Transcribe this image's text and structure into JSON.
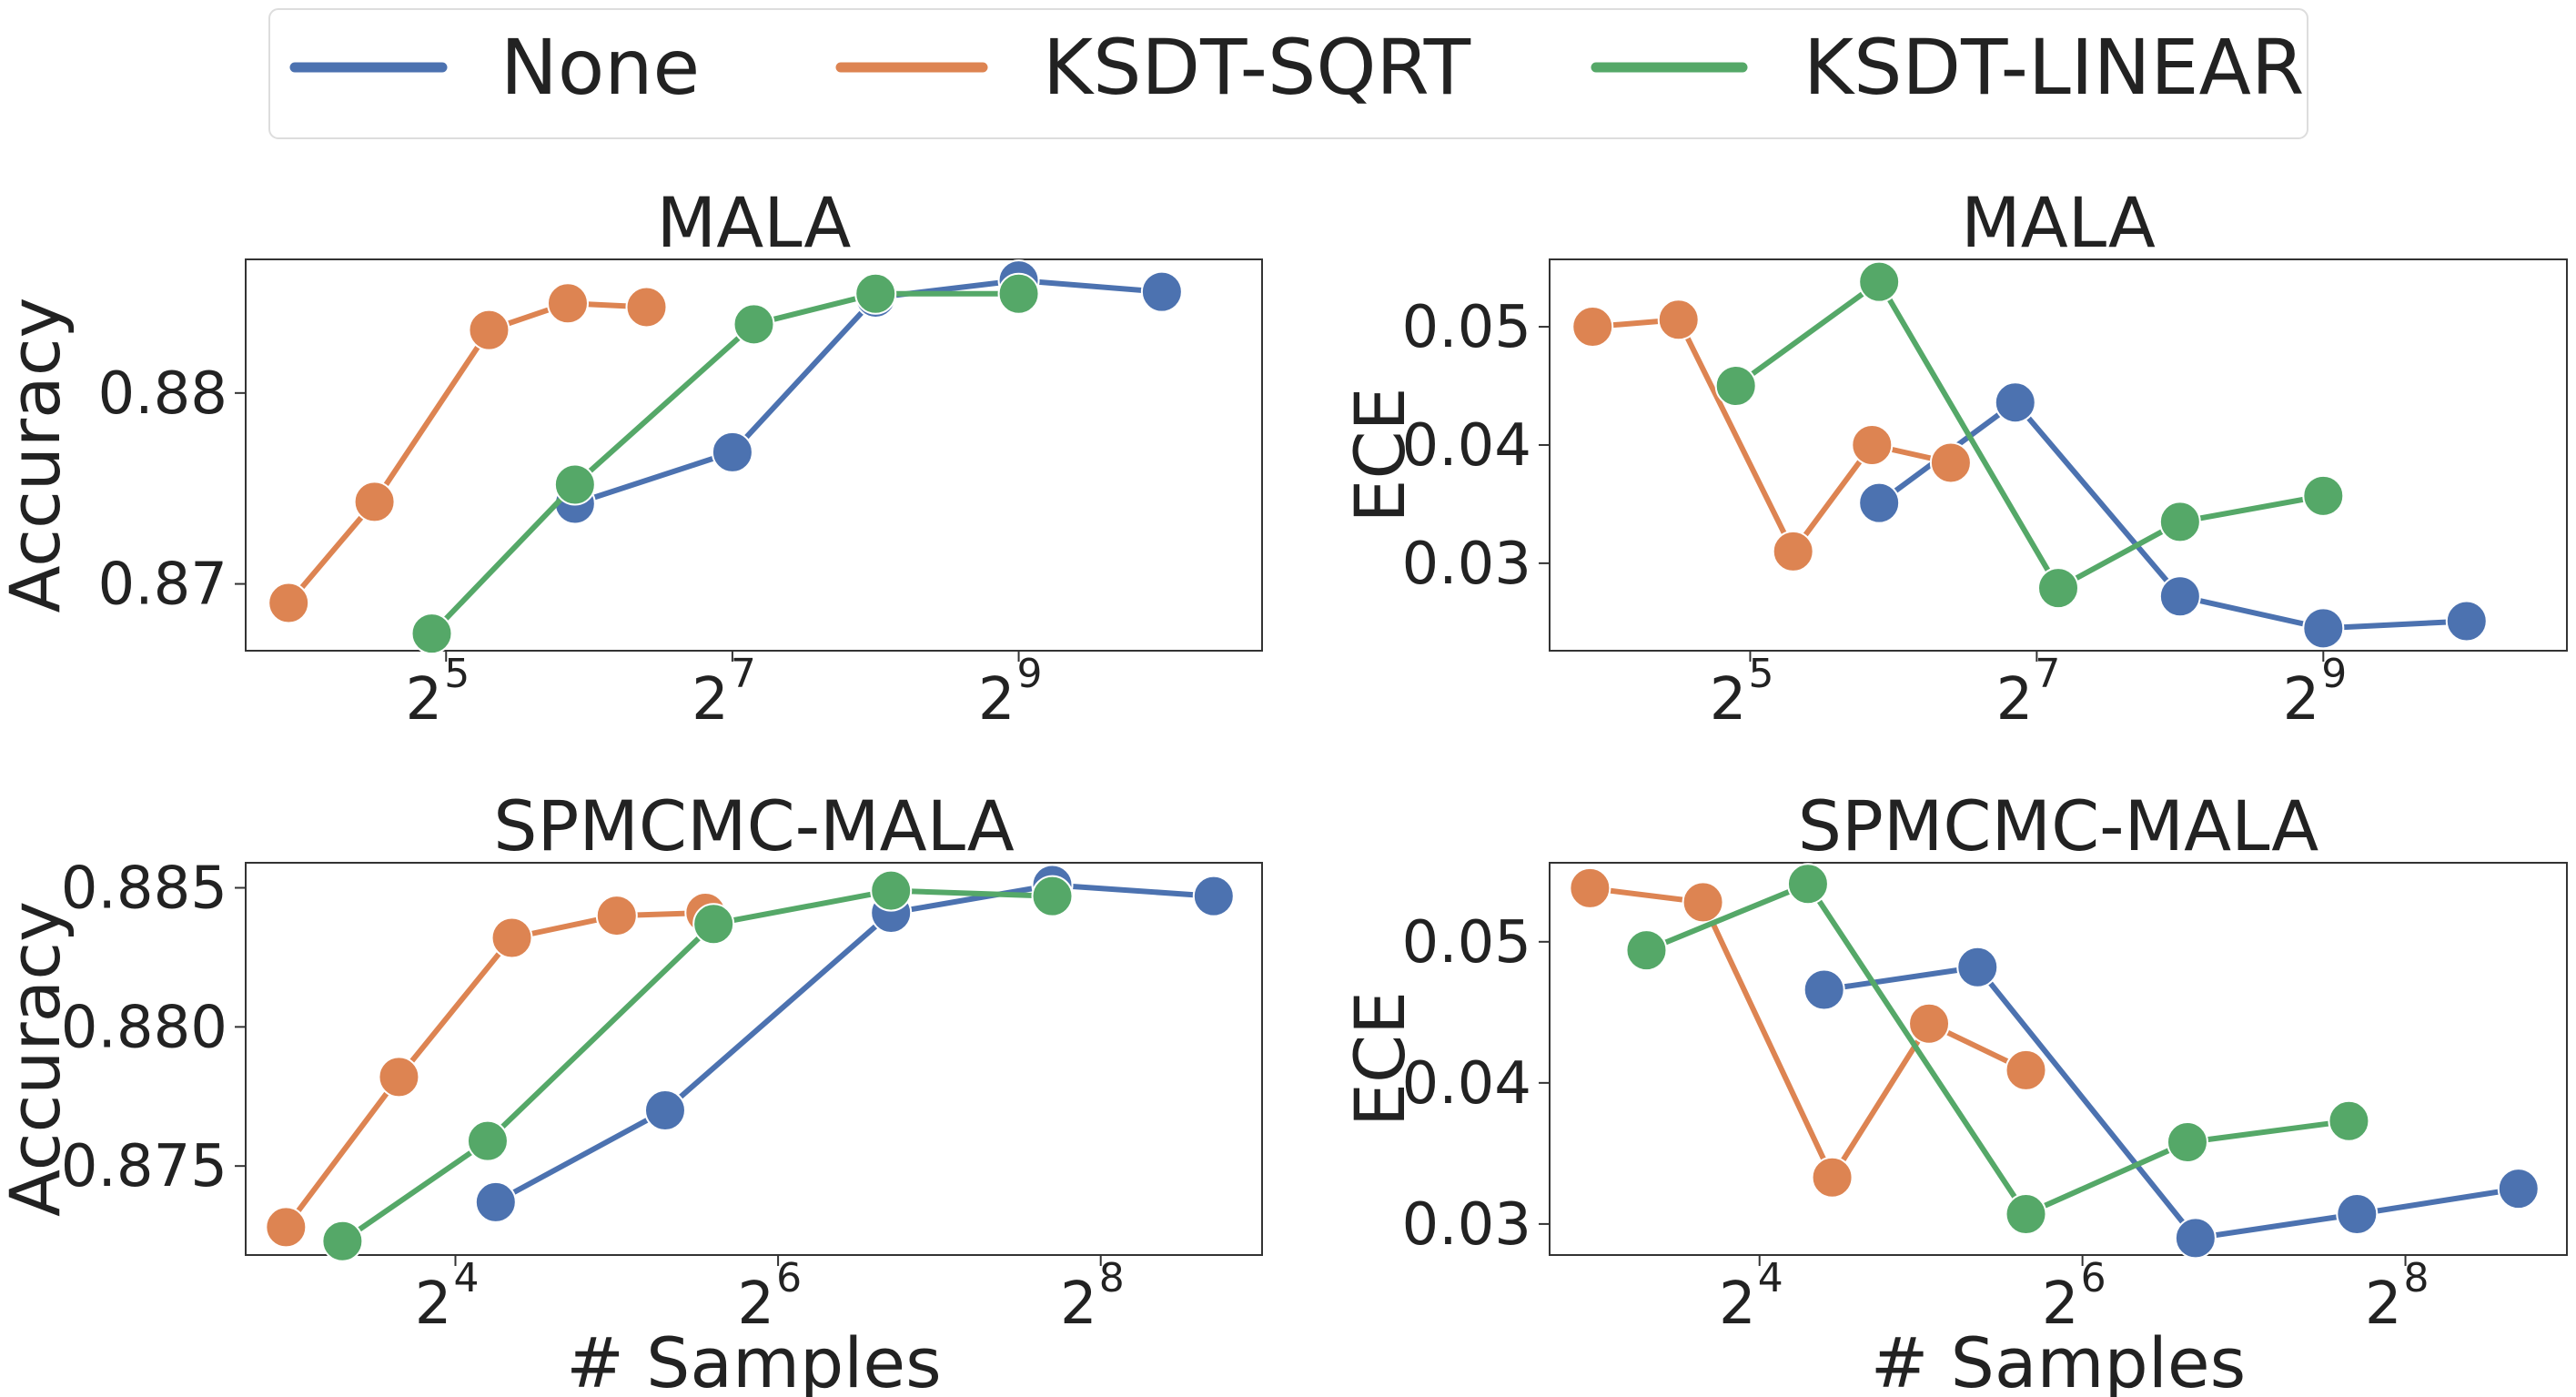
{
  "legend": {
    "entries": [
      {
        "label": "None",
        "color": "#4c72b0"
      },
      {
        "label": "KSDT-SQRT",
        "color": "#dd8452"
      },
      {
        "label": "KSDT-LINEAR",
        "color": "#55a868"
      }
    ]
  },
  "chart_data": [
    {
      "type": "line",
      "title": "MALA",
      "xlabel": "",
      "ylabel": "Accuracy",
      "xscale": "log2",
      "xlim_log2": [
        3.6,
        10.7
      ],
      "ylim": [
        0.8665,
        0.887
      ],
      "xticks": [
        {
          "base": "2",
          "exp": "5",
          "log2": 5
        },
        {
          "base": "2",
          "exp": "7",
          "log2": 7
        },
        {
          "base": "2",
          "exp": "9",
          "log2": 9
        }
      ],
      "yticks": [
        {
          "label": "0.87",
          "value": 0.87
        },
        {
          "label": "0.88",
          "value": 0.88
        }
      ],
      "series": [
        {
          "name": "None",
          "x_log2": [
            5.9,
            7.0,
            8.0,
            9.0,
            10.0
          ],
          "values": [
            0.8742,
            0.8769,
            0.885,
            0.8859,
            0.8853
          ]
        },
        {
          "name": "KSDT-SQRT",
          "x_log2": [
            3.9,
            4.5,
            5.3,
            5.85,
            6.4
          ],
          "values": [
            0.869,
            0.8743,
            0.8833,
            0.8847,
            0.8845
          ]
        },
        {
          "name": "KSDT-LINEAR",
          "x_log2": [
            4.9,
            5.9,
            7.15,
            8.0,
            9.0
          ],
          "values": [
            0.8674,
            0.8752,
            0.8836,
            0.8852,
            0.8852
          ]
        }
      ]
    },
    {
      "type": "line",
      "title": "MALA",
      "xlabel": "",
      "ylabel": "ECE",
      "xscale": "log2",
      "xlim_log2": [
        3.6,
        10.7
      ],
      "ylim": [
        0.0226,
        0.0557
      ],
      "xticks": [
        {
          "base": "2",
          "exp": "5",
          "log2": 5
        },
        {
          "base": "2",
          "exp": "7",
          "log2": 7
        },
        {
          "base": "2",
          "exp": "9",
          "log2": 9
        }
      ],
      "yticks": [
        {
          "label": "0.03",
          "value": 0.03
        },
        {
          "label": "0.04",
          "value": 0.04
        },
        {
          "label": "0.05",
          "value": 0.05
        }
      ],
      "series": [
        {
          "name": "None",
          "x_log2": [
            5.9,
            6.85,
            8.0,
            9.0,
            10.0
          ],
          "values": [
            0.0351,
            0.0436,
            0.0272,
            0.0245,
            0.0251
          ]
        },
        {
          "name": "KSDT-SQRT",
          "x_log2": [
            3.9,
            4.5,
            5.3,
            5.85,
            6.4
          ],
          "values": [
            0.05,
            0.0506,
            0.031,
            0.04,
            0.0385
          ]
        },
        {
          "name": "KSDT-LINEAR",
          "x_log2": [
            4.9,
            5.9,
            7.15,
            8.0,
            9.0
          ],
          "values": [
            0.045,
            0.0538,
            0.0279,
            0.0335,
            0.0357
          ]
        }
      ]
    },
    {
      "type": "line",
      "title": "SPMCMC-MALA",
      "xlabel": "# Samples",
      "ylabel": "Accuracy",
      "xscale": "log2",
      "xlim_log2": [
        2.7,
        9.0
      ],
      "ylim": [
        0.8718,
        0.8859
      ],
      "xticks": [
        {
          "base": "2",
          "exp": "4",
          "log2": 4
        },
        {
          "base": "2",
          "exp": "6",
          "log2": 6
        },
        {
          "base": "2",
          "exp": "8",
          "log2": 8
        }
      ],
      "yticks": [
        {
          "label": "0.875",
          "value": 0.875
        },
        {
          "label": "0.880",
          "value": 0.88
        },
        {
          "label": "0.885",
          "value": 0.885
        }
      ],
      "series": [
        {
          "name": "None",
          "x_log2": [
            4.25,
            5.3,
            6.7,
            7.7,
            8.7
          ],
          "values": [
            0.8737,
            0.877,
            0.8841,
            0.8851,
            0.8847
          ]
        },
        {
          "name": "KSDT-SQRT",
          "x_log2": [
            2.95,
            3.65,
            4.35,
            5.0,
            5.55
          ],
          "values": [
            0.8728,
            0.8782,
            0.8832,
            0.884,
            0.8841
          ]
        },
        {
          "name": "KSDT-LINEAR",
          "x_log2": [
            3.3,
            4.2,
            5.6,
            6.7,
            7.7
          ],
          "values": [
            0.8723,
            0.8759,
            0.8837,
            0.8849,
            0.8847
          ]
        }
      ]
    },
    {
      "type": "line",
      "title": "SPMCMC-MALA",
      "xlabel": "# Samples",
      "ylabel": "ECE",
      "xscale": "log2",
      "xlim_log2": [
        2.7,
        9.0
      ],
      "ylim": [
        0.0278,
        0.0556
      ],
      "xticks": [
        {
          "base": "2",
          "exp": "4",
          "log2": 4
        },
        {
          "base": "2",
          "exp": "6",
          "log2": 6
        },
        {
          "base": "2",
          "exp": "8",
          "log2": 8
        }
      ],
      "yticks": [
        {
          "label": "0.03",
          "value": 0.03
        },
        {
          "label": "0.04",
          "value": 0.04
        },
        {
          "label": "0.05",
          "value": 0.05
        }
      ],
      "series": [
        {
          "name": "None",
          "x_log2": [
            4.4,
            5.35,
            6.7,
            7.7,
            8.7
          ],
          "values": [
            0.0466,
            0.0482,
            0.029,
            0.0307,
            0.0325
          ]
        },
        {
          "name": "KSDT-SQRT",
          "x_log2": [
            2.95,
            3.65,
            4.45,
            5.05,
            5.65
          ],
          "values": [
            0.0538,
            0.0528,
            0.0333,
            0.0442,
            0.0409
          ]
        },
        {
          "name": "KSDT-LINEAR",
          "x_log2": [
            3.3,
            4.3,
            5.65,
            6.65,
            7.65
          ],
          "values": [
            0.0494,
            0.0541,
            0.0307,
            0.0358,
            0.0373
          ]
        }
      ]
    }
  ]
}
